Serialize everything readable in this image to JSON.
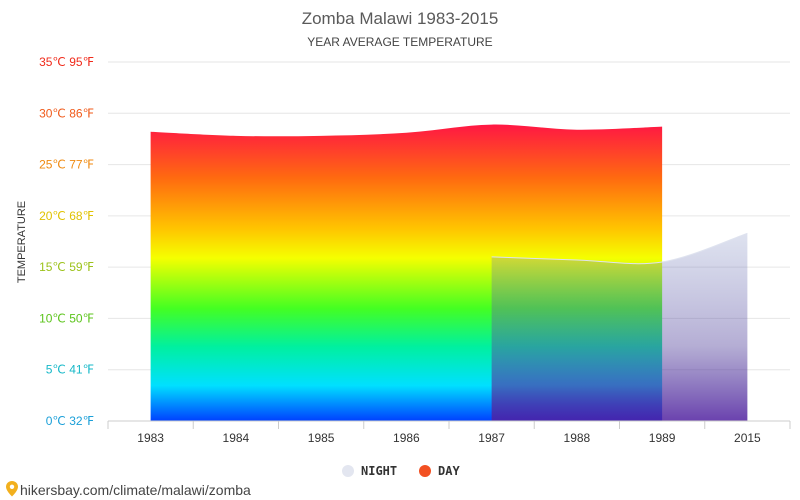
{
  "chart_data": {
    "type": "area",
    "title": "Zomba Malawi 1983-2015",
    "subtitle": "YEAR AVERAGE TEMPERATURE",
    "ylabel": "TEMPERATURE",
    "categories": [
      "1983",
      "1984",
      "1985",
      "1986",
      "1987",
      "1988",
      "1989",
      "2015"
    ],
    "ylim": [
      0,
      35
    ],
    "yticks": [
      {
        "value": 0,
        "label": "0℃ 32℉",
        "color": "#1a9fd8"
      },
      {
        "value": 5,
        "label": "5℃ 41℉",
        "color": "#16b8c8"
      },
      {
        "value": 10,
        "label": "10℃ 50℉",
        "color": "#5cc41c"
      },
      {
        "value": 15,
        "label": "15℃ 59℉",
        "color": "#9cc21a"
      },
      {
        "value": 20,
        "label": "20℃ 68℉",
        "color": "#e0c200"
      },
      {
        "value": 25,
        "label": "25℃ 77℉",
        "color": "#f08a10"
      },
      {
        "value": 30,
        "label": "30℃ 86℉",
        "color": "#f05a1a"
      },
      {
        "value": 35,
        "label": "35℃ 95℉",
        "color": "#f02a1a"
      }
    ],
    "grid": true,
    "legend_position": "bottom-center",
    "series": [
      {
        "name": "NIGHT",
        "color": "#e3e6f0",
        "values": [
          null,
          null,
          null,
          null,
          16.0,
          15.7,
          15.5,
          18.3
        ]
      },
      {
        "name": "DAY",
        "color": "#f25022",
        "values": [
          28.2,
          27.8,
          27.8,
          28.1,
          28.9,
          28.4,
          28.7,
          null
        ]
      }
    ]
  },
  "source_text": "hikersbay.com/climate/malawi/zomba"
}
